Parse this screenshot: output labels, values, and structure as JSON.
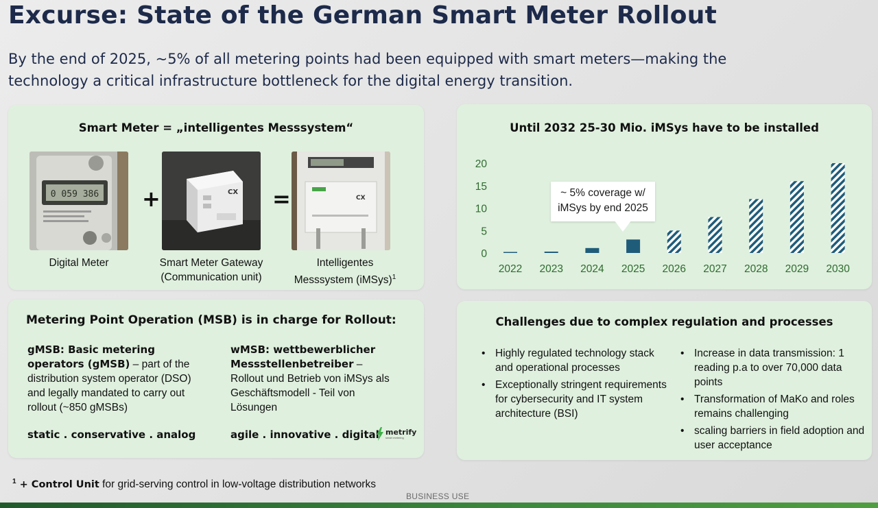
{
  "title": "Excurse: State of the German Smart Meter Rollout",
  "subtitle": "By the end of 2025, ~5% of all metering points had been equipped with smart meters—making the technology a critical infrastructure bottleneck for the digital energy transition.",
  "smart_meter_card": {
    "title": "Smart Meter = „intelligentes Messsystem“",
    "plus": "+",
    "equals": "=",
    "items": [
      {
        "caption_line1": "Digital Meter",
        "caption_line2": ""
      },
      {
        "caption_line1": "Smart Meter Gateway",
        "caption_line2": "(Communication unit)"
      },
      {
        "caption_line1": "Intelligentes",
        "caption_line2": "Messsystem (iMSys)",
        "superscript": "1"
      }
    ],
    "photo_texts": {
      "meter_display": "0 059 386",
      "gateway_label": "CX",
      "imsys_label": "CX"
    }
  },
  "chart_card": {
    "title": "Until 2032 25-30 Mio. iMSys have to be installed",
    "callout_line1": "~ 5% coverage w/",
    "callout_line2": "iMSys by end 2025"
  },
  "chart_data": {
    "type": "bar",
    "categories": [
      "2022",
      "2023",
      "2024",
      "2025",
      "2026",
      "2027",
      "2028",
      "2029",
      "2030"
    ],
    "values": [
      0.1,
      0.3,
      1.1,
      3.0,
      5.0,
      8.0,
      12.0,
      16.0,
      20.0
    ],
    "actual_or_forecast": [
      "actual",
      "actual",
      "actual",
      "actual",
      "forecast",
      "forecast",
      "forecast",
      "forecast",
      "forecast"
    ],
    "yticks": [
      0,
      5,
      10,
      15,
      20
    ],
    "ylim": [
      0,
      20
    ],
    "xlabel": "",
    "ylabel": "",
    "colors": {
      "actual": "#1f5c7a",
      "forecast_stripe": "#1f5c7a",
      "tick_label_x": "#2e6b2e",
      "tick_label_y": "#2e6b2e"
    }
  },
  "msb_card": {
    "title": "Metering Point Operation (MSB) is in charge for Rollout:",
    "left": {
      "bold": "gMSB: Basic metering operators (gMSB)",
      "text": " – part of the distribution system operator (DSO)  and legally mandated to carry out rollout (~850 gMSBs)",
      "tagline": "static . conservative . analog"
    },
    "right": {
      "bold": "wMSB: wettbewerblicher Messstellenbetreiber",
      "text": " – Rollout und Betrieb von iMSys als Geschäftsmodell - Teil von Lösungen",
      "tagline": "agile . innovative . digital"
    },
    "logo": {
      "name": "metrify",
      "sub": "smart metering"
    }
  },
  "challenges_card": {
    "title": "Challenges due to complex regulation and processes",
    "left_bullets": [
      "Highly regulated technology stack and operational processes",
      "Exceptionally stringent requirements for cybersecurity and IT system architecture (BSI)"
    ],
    "right_bullets": [
      "Increase in data transmission: 1 reading p.a to over 70,000 data points",
      "Transformation of MaKo and roles remains challenging",
      "scaling barriers in field adoption and user acceptance"
    ]
  },
  "footnote": {
    "marker": "1",
    "bold": " + Control Unit",
    "text": " for grid-serving control in low-voltage distribution networks"
  },
  "classification": "BUSINESS USE"
}
